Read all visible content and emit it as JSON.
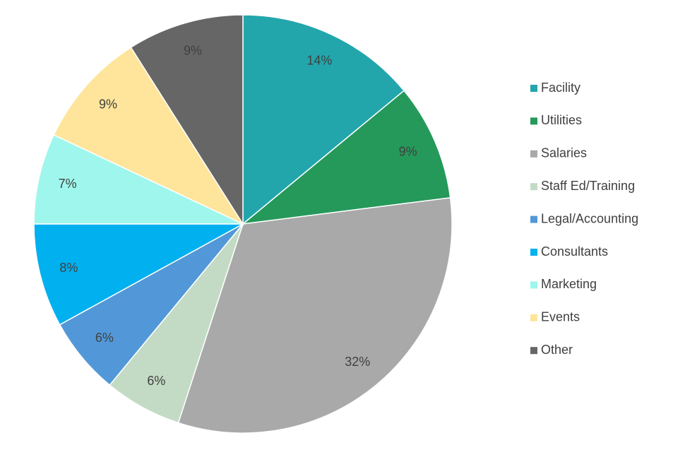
{
  "chart_data": {
    "type": "pie",
    "categories": [
      "Facility",
      "Utilities",
      "Salaries",
      "Staff Ed/Training",
      "Legal/Accounting",
      "Consultants",
      "Marketing",
      "Events",
      "Other"
    ],
    "values": [
      14,
      9,
      32,
      6,
      6,
      8,
      7,
      9,
      9
    ],
    "value_labels": [
      "14%",
      "9%",
      "32%",
      "6%",
      "6%",
      "8%",
      "7%",
      "9%",
      "9%"
    ],
    "colors": [
      "#22a6ac",
      "#25995a",
      "#a9a9a9",
      "#c3dbc4",
      "#5298d8",
      "#00b0ef",
      "#9ff6ec",
      "#ffe59b",
      "#666666"
    ],
    "legend": "right"
  }
}
